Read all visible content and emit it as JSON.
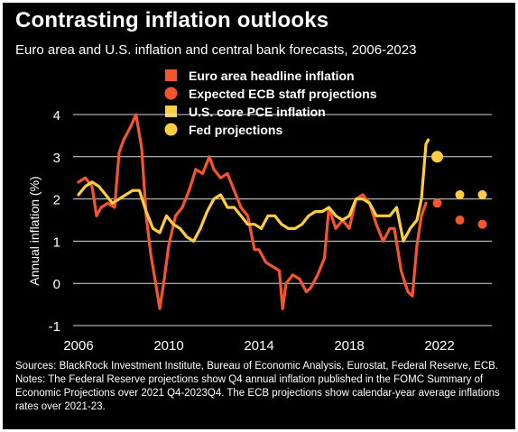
{
  "title": "Contrasting inflation outlooks",
  "subtitle": "Euro area and U.S. inflation and central bank forecasts, 2006-2023",
  "notes": "Sources: BlackRock Investment Institute, Bureau of Economic Analysis, Eurostat, Federal Reserve, ECB. Notes: The Federal Reserve projections show Q4 annual inflation published in the FOMC Summary of Economic Projections over 2021 Q4-2023Q4. The ECB projections show calendar-year average inflations rates over 2021-23.",
  "chart_data": {
    "type": "line",
    "ylabel": "Annual inflation (%)",
    "ylim": [
      -1,
      4
    ],
    "xlim": [
      2006,
      2024
    ],
    "yticks": [
      "-1",
      "0",
      "1",
      "2",
      "3",
      "4"
    ],
    "xticks": [
      "2006",
      "2010",
      "2014",
      "2018",
      "2022"
    ],
    "grid": true,
    "legend_position": "top-center",
    "series": [
      {
        "name": "Euro area headline inflation",
        "kind": "line",
        "color": "#f3552c",
        "x": [
          2006.0,
          2006.3,
          2006.6,
          2006.8,
          2007.0,
          2007.3,
          2007.6,
          2007.8,
          2008.0,
          2008.3,
          2008.55,
          2008.8,
          2009.0,
          2009.2,
          2009.45,
          2009.6,
          2009.8,
          2010.0,
          2010.3,
          2010.6,
          2010.9,
          2011.2,
          2011.5,
          2011.8,
          2012.0,
          2012.3,
          2012.6,
          2012.9,
          2013.2,
          2013.5,
          2013.8,
          2014.0,
          2014.3,
          2014.6,
          2014.9,
          2015.05,
          2015.2,
          2015.5,
          2015.8,
          2016.1,
          2016.3,
          2016.6,
          2016.9,
          2017.1,
          2017.4,
          2017.7,
          2018.0,
          2018.3,
          2018.6,
          2018.9,
          2019.2,
          2019.5,
          2019.8,
          2020.0,
          2020.3,
          2020.6,
          2020.8,
          2021.0,
          2021.2,
          2021.4
        ],
        "values": [
          2.4,
          2.5,
          2.3,
          1.6,
          1.8,
          1.9,
          1.8,
          3.1,
          3.4,
          3.7,
          4.0,
          3.2,
          1.6,
          0.7,
          -0.1,
          -0.6,
          0.1,
          0.9,
          1.6,
          1.8,
          2.2,
          2.7,
          2.6,
          3.0,
          2.7,
          2.5,
          2.6,
          2.2,
          1.8,
          1.6,
          0.8,
          0.8,
          0.5,
          0.4,
          0.3,
          -0.6,
          0.0,
          0.2,
          0.1,
          -0.2,
          -0.1,
          0.2,
          0.6,
          1.8,
          1.3,
          1.5,
          1.3,
          2.0,
          2.1,
          1.9,
          1.4,
          1.0,
          1.3,
          1.3,
          0.3,
          -0.2,
          -0.3,
          0.9,
          1.6,
          1.9
        ]
      },
      {
        "name": "Expected ECB staff projections",
        "kind": "points",
        "color": "#f3552c",
        "x": [
          2021.9,
          2022.9,
          2023.9
        ],
        "values": [
          1.9,
          1.5,
          1.4
        ]
      },
      {
        "name": "U.S. core PCE inflation",
        "kind": "line",
        "color": "#ffcd41",
        "x": [
          2006.0,
          2006.3,
          2006.6,
          2006.9,
          2007.2,
          2007.5,
          2007.8,
          2008.1,
          2008.4,
          2008.7,
          2009.0,
          2009.3,
          2009.6,
          2009.9,
          2010.2,
          2010.5,
          2010.8,
          2011.1,
          2011.4,
          2011.7,
          2012.0,
          2012.3,
          2012.6,
          2012.9,
          2013.2,
          2013.5,
          2013.8,
          2014.1,
          2014.4,
          2014.7,
          2015.0,
          2015.3,
          2015.6,
          2015.9,
          2016.2,
          2016.5,
          2016.8,
          2017.1,
          2017.4,
          2017.7,
          2018.0,
          2018.3,
          2018.6,
          2018.9,
          2019.2,
          2019.5,
          2019.8,
          2020.1,
          2020.4,
          2020.7,
          2021.0,
          2021.2,
          2021.4,
          2021.5
        ],
        "values": [
          2.1,
          2.3,
          2.4,
          2.3,
          2.1,
          1.9,
          2.0,
          2.1,
          2.2,
          2.2,
          1.7,
          1.3,
          1.2,
          1.6,
          1.4,
          1.3,
          1.1,
          1.0,
          1.3,
          1.7,
          2.0,
          2.1,
          1.8,
          1.8,
          1.6,
          1.4,
          1.4,
          1.3,
          1.6,
          1.6,
          1.4,
          1.3,
          1.3,
          1.4,
          1.6,
          1.7,
          1.7,
          1.8,
          1.6,
          1.5,
          1.6,
          2.0,
          2.0,
          1.9,
          1.6,
          1.6,
          1.6,
          1.8,
          1.0,
          1.3,
          1.5,
          2.0,
          3.3,
          3.4
        ]
      },
      {
        "name": "Fed projections",
        "kind": "points",
        "color": "#ffcd41",
        "x": [
          2021.9,
          2022.9,
          2023.9
        ],
        "values": [
          3.0,
          2.1,
          2.1
        ]
      }
    ]
  }
}
